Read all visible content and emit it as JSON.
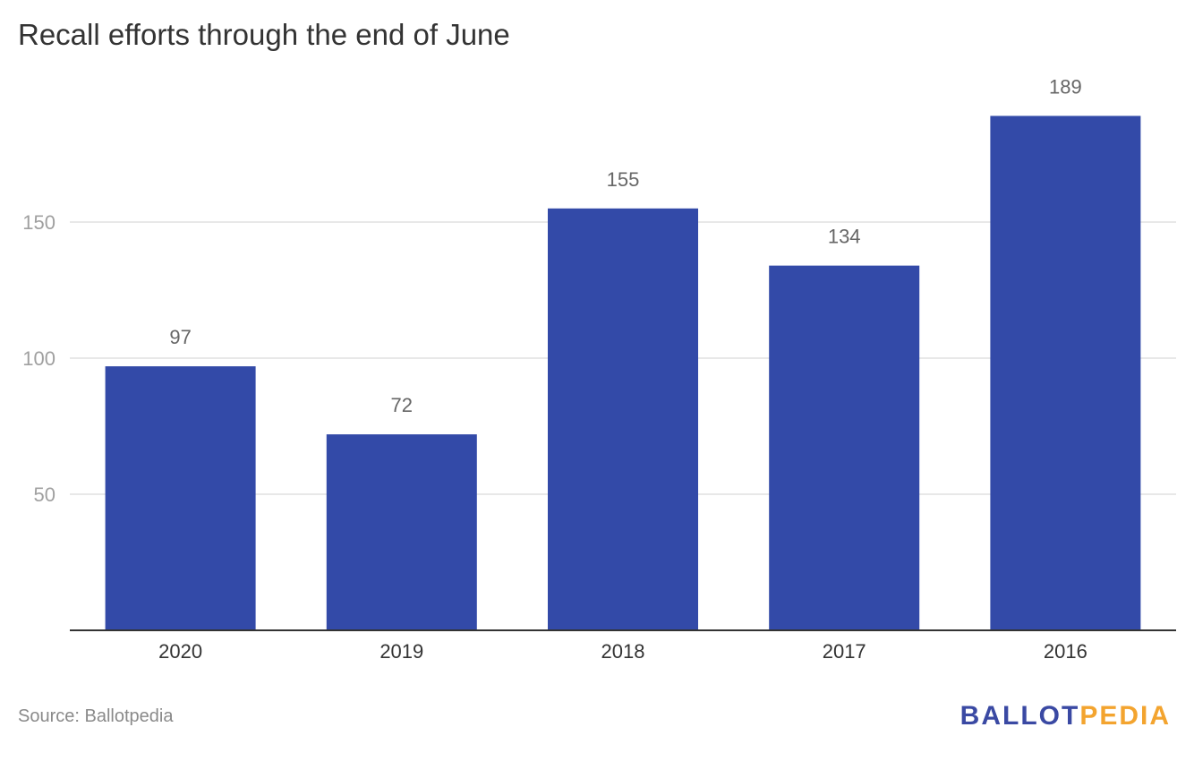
{
  "header": {
    "title": "Recall efforts through the end of June"
  },
  "footer": {
    "source": "Source: Ballotpedia",
    "logo_part1": "BALLOT",
    "logo_part2": "PEDIA"
  },
  "colors": {
    "bar": "#334aa8",
    "grid": "#e0e0e0",
    "axis": "#333333",
    "tick_text": "#a0a0a0",
    "label_text": "#666666",
    "logo_blue": "#3a49a3",
    "logo_orange": "#f3a42f"
  },
  "chart_data": {
    "type": "bar",
    "title": "Recall efforts through the end of June",
    "xlabel": "",
    "ylabel": "",
    "categories": [
      "2020",
      "2019",
      "2018",
      "2017",
      "2016"
    ],
    "values": [
      97,
      72,
      155,
      134,
      189
    ],
    "ylim": [
      0,
      200
    ],
    "yticks": [
      50,
      100,
      150
    ],
    "grid": true,
    "data_labels": true
  }
}
